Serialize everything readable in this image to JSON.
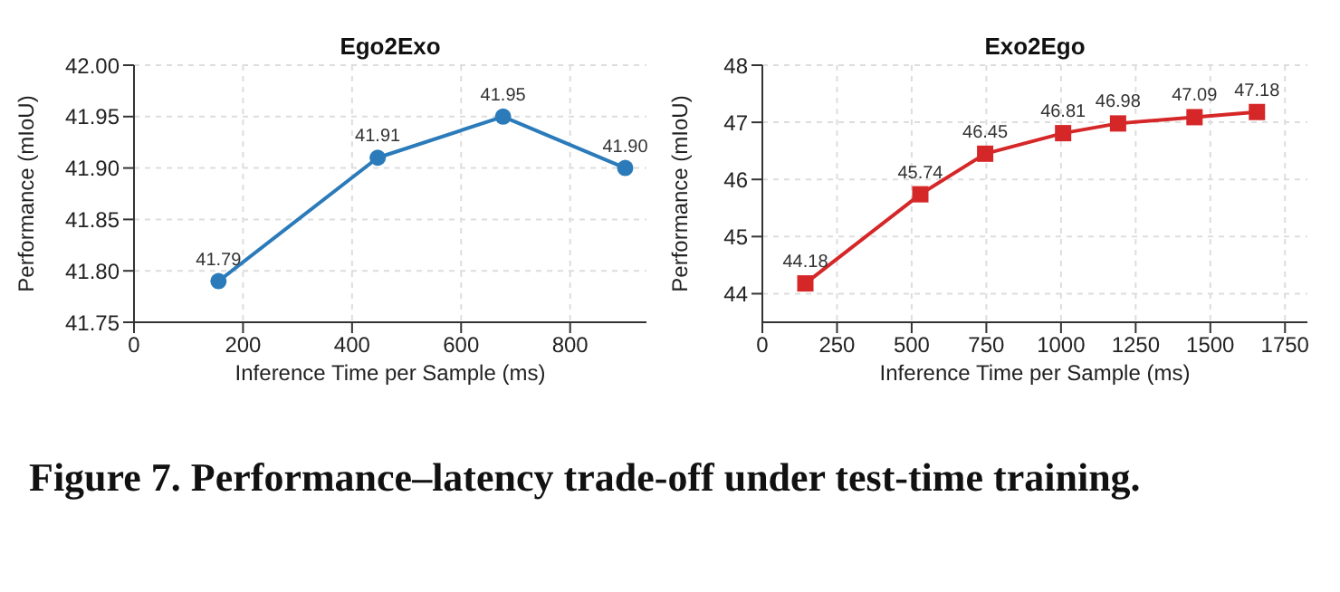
{
  "chart_data": [
    {
      "type": "line",
      "title": "Ego2Exo",
      "xlabel": "Inference Time per Sample (ms)",
      "ylabel": "Performance (mIoU)",
      "x": [
        155,
        447,
        677,
        901
      ],
      "series": [
        {
          "color": "#2b7bba",
          "values": [
            41.79,
            41.91,
            41.95,
            41.9
          ],
          "value_labels": [
            "41.79",
            "41.91",
            "41.95",
            "41.90"
          ]
        }
      ],
      "xlim": [
        0,
        940
      ],
      "xticks": [
        0,
        200,
        400,
        600,
        800
      ],
      "ylim": [
        41.75,
        42.0
      ],
      "yticks": [
        41.75,
        {
          "value": 41.8,
          "label": "41.80"
        },
        41.85,
        {
          "value": 41.9,
          "label": "41.90"
        },
        41.95,
        {
          "value": 42.0,
          "label": "42.00"
        }
      ],
      "grid": true,
      "marker": "circle",
      "line_style": "solid",
      "annotations": [
        "Figure 7. Performance–latency trade-off under test-time training."
      ]
    },
    {
      "type": "line",
      "title": "Exo2Ego",
      "xlabel": "Inference Time per Sample (ms)",
      "ylabel": "Performance (mIoU)",
      "x": [
        144,
        529,
        746,
        1007,
        1191,
        1447,
        1656
      ],
      "series": [
        {
          "color": "#d62728",
          "values": [
            44.18,
            45.74,
            46.45,
            46.81,
            46.98,
            47.09,
            47.18
          ],
          "value_labels": [
            "44.18",
            "45.74",
            "46.45",
            "46.81",
            "46.98",
            "47.09",
            "47.18"
          ]
        }
      ],
      "xlim": [
        0,
        1825
      ],
      "xticks": [
        0,
        250,
        500,
        750,
        1000,
        1250,
        1500,
        1750
      ],
      "ylim": [
        43.5,
        48
      ],
      "yticks": [
        44,
        45,
        46,
        47,
        48
      ],
      "grid": true,
      "marker": "square",
      "line_style": "solid"
    }
  ]
}
